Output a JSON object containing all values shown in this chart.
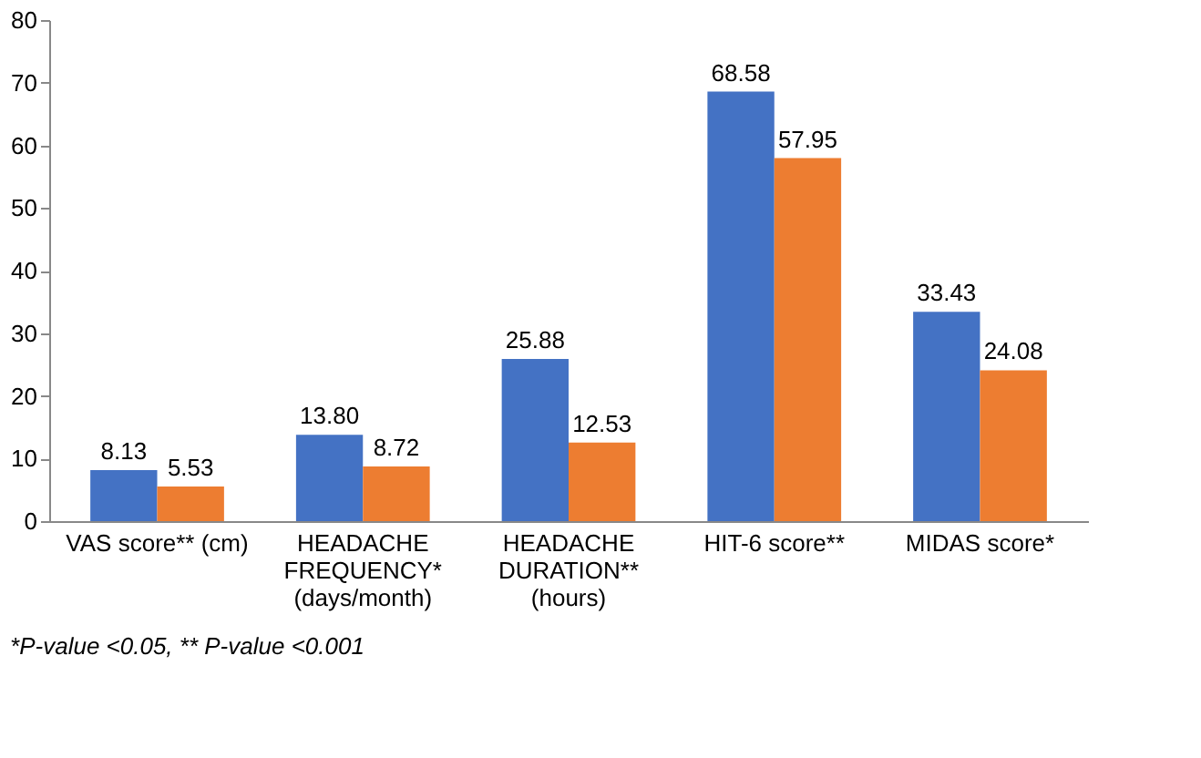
{
  "chart_data": {
    "type": "bar",
    "categories": [
      "VAS score** (cm)",
      "HEADACHE\nFREQUENCY*\n(days/month)",
      "HEADACHE\nDURATION**\n(hours)",
      "HIT-6 score**",
      "MIDAS score*"
    ],
    "series": [
      {
        "color": "#4472c4",
        "values": [
          8.13,
          13.8,
          25.88,
          68.58,
          33.43
        ],
        "value_labels": [
          "8.13",
          "13.80",
          "25.88",
          "68.58",
          "33.43"
        ]
      },
      {
        "color": "#ed7d31",
        "values": [
          5.53,
          8.72,
          12.53,
          57.95,
          24.08
        ],
        "value_labels": [
          "5.53",
          "8.72",
          "12.53",
          "57.95",
          "24.08"
        ]
      }
    ],
    "ylim": [
      0,
      80
    ],
    "yticks": [
      0,
      10,
      20,
      30,
      40,
      50,
      60,
      70,
      80
    ],
    "grid": false,
    "legend": false,
    "annotations": [
      "*P-value <0.05, ** P-value <0.001"
    ]
  }
}
